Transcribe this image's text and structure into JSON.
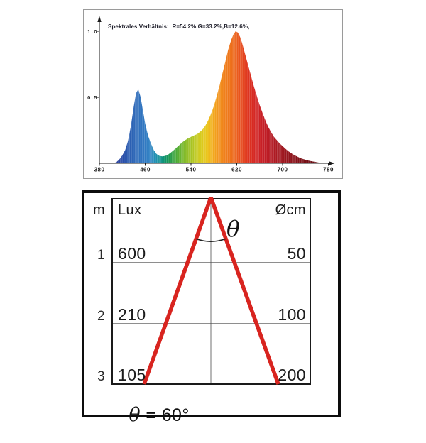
{
  "colors": {
    "beam_red": "#d8241f",
    "frame_gray": "#9a9a9a",
    "box_black": "#0d0d0d",
    "text_dark": "#1a1a1a"
  },
  "chart_data": [
    {
      "type": "area",
      "title": "Spektrales Verhältnis:  R=54.2%,G=33.2%,B=12.6%,",
      "x_ticks": [
        "380",
        "460",
        "540",
        "620",
        "700",
        "780"
      ],
      "y_ticks": [
        "0.5",
        "1.0"
      ],
      "xlim": [
        380,
        780
      ],
      "ylim": [
        0,
        1.05
      ],
      "grid": false,
      "series": [
        {
          "name": "relative-spectral-power",
          "x": [
            405,
            410,
            415,
            420,
            425,
            430,
            435,
            440,
            444,
            448,
            452,
            456,
            460,
            465,
            470,
            475,
            480,
            485,
            490,
            495,
            500,
            505,
            510,
            515,
            520,
            525,
            530,
            535,
            540,
            545,
            550,
            555,
            560,
            565,
            570,
            575,
            580,
            585,
            590,
            595,
            600,
            605,
            610,
            614,
            618,
            622,
            626,
            630,
            635,
            640,
            645,
            650,
            655,
            660,
            665,
            670,
            675,
            680,
            685,
            690,
            695,
            700,
            705,
            710,
            715,
            720,
            725,
            730,
            735,
            740,
            745,
            750,
            755,
            760,
            765,
            770
          ],
          "y": [
            0.0,
            0.01,
            0.03,
            0.06,
            0.1,
            0.17,
            0.28,
            0.43,
            0.53,
            0.56,
            0.5,
            0.4,
            0.3,
            0.21,
            0.15,
            0.1,
            0.07,
            0.056,
            0.052,
            0.056,
            0.066,
            0.082,
            0.1,
            0.12,
            0.14,
            0.16,
            0.175,
            0.19,
            0.2,
            0.21,
            0.22,
            0.235,
            0.255,
            0.285,
            0.325,
            0.375,
            0.435,
            0.51,
            0.59,
            0.68,
            0.77,
            0.86,
            0.93,
            0.975,
            1.0,
            0.99,
            0.955,
            0.9,
            0.82,
            0.74,
            0.66,
            0.58,
            0.51,
            0.44,
            0.38,
            0.325,
            0.275,
            0.235,
            0.2,
            0.175,
            0.15,
            0.13,
            0.11,
            0.092,
            0.077,
            0.063,
            0.052,
            0.042,
            0.034,
            0.027,
            0.021,
            0.016,
            0.012,
            0.008,
            0.004,
            0.001
          ]
        }
      ],
      "spectrum_colors": [
        {
          "nm": 405,
          "color": "#2a3a96"
        },
        {
          "nm": 420,
          "color": "#2a4da8"
        },
        {
          "nm": 433,
          "color": "#2c5fb2"
        },
        {
          "nm": 445,
          "color": "#2f6cba"
        },
        {
          "nm": 458,
          "color": "#3178c1"
        },
        {
          "nm": 468,
          "color": "#3484c5"
        },
        {
          "nm": 478,
          "color": "#2191b4"
        },
        {
          "nm": 488,
          "color": "#0f9287"
        },
        {
          "nm": 497,
          "color": "#129560"
        },
        {
          "nm": 507,
          "color": "#2f9f43"
        },
        {
          "nm": 517,
          "color": "#54ad33"
        },
        {
          "nm": 527,
          "color": "#7cb92c"
        },
        {
          "nm": 538,
          "color": "#a1c226"
        },
        {
          "nm": 548,
          "color": "#bec921"
        },
        {
          "nm": 558,
          "color": "#d9cb1d"
        },
        {
          "nm": 568,
          "color": "#ebc51c"
        },
        {
          "nm": 577,
          "color": "#f2ae1c"
        },
        {
          "nm": 587,
          "color": "#f2961c"
        },
        {
          "nm": 597,
          "color": "#f0831c"
        },
        {
          "nm": 607,
          "color": "#ee751b"
        },
        {
          "nm": 617,
          "color": "#ec651d"
        },
        {
          "nm": 627,
          "color": "#e74f1e"
        },
        {
          "nm": 637,
          "color": "#e03a20"
        },
        {
          "nm": 647,
          "color": "#d82b22"
        },
        {
          "nm": 657,
          "color": "#cf2325"
        },
        {
          "nm": 668,
          "color": "#c31e26"
        },
        {
          "nm": 680,
          "color": "#b51b24"
        },
        {
          "nm": 695,
          "color": "#a51921"
        },
        {
          "nm": 712,
          "color": "#92151d"
        },
        {
          "nm": 730,
          "color": "#7f1118"
        },
        {
          "nm": 750,
          "color": "#6d0e14"
        },
        {
          "nm": 770,
          "color": "#5e0b10"
        }
      ]
    },
    {
      "type": "table",
      "columns": [
        "m",
        "Lux",
        "Øcm"
      ],
      "rows": [
        [
          "1",
          "600",
          "50"
        ],
        [
          "2",
          "210",
          "100"
        ],
        [
          "3",
          "105",
          "200"
        ]
      ],
      "beam_color": "#d8241f",
      "annotations": {
        "theta": "θ",
        "theta_equation": " = 60°",
        "beam_angle": "60°"
      }
    }
  ]
}
